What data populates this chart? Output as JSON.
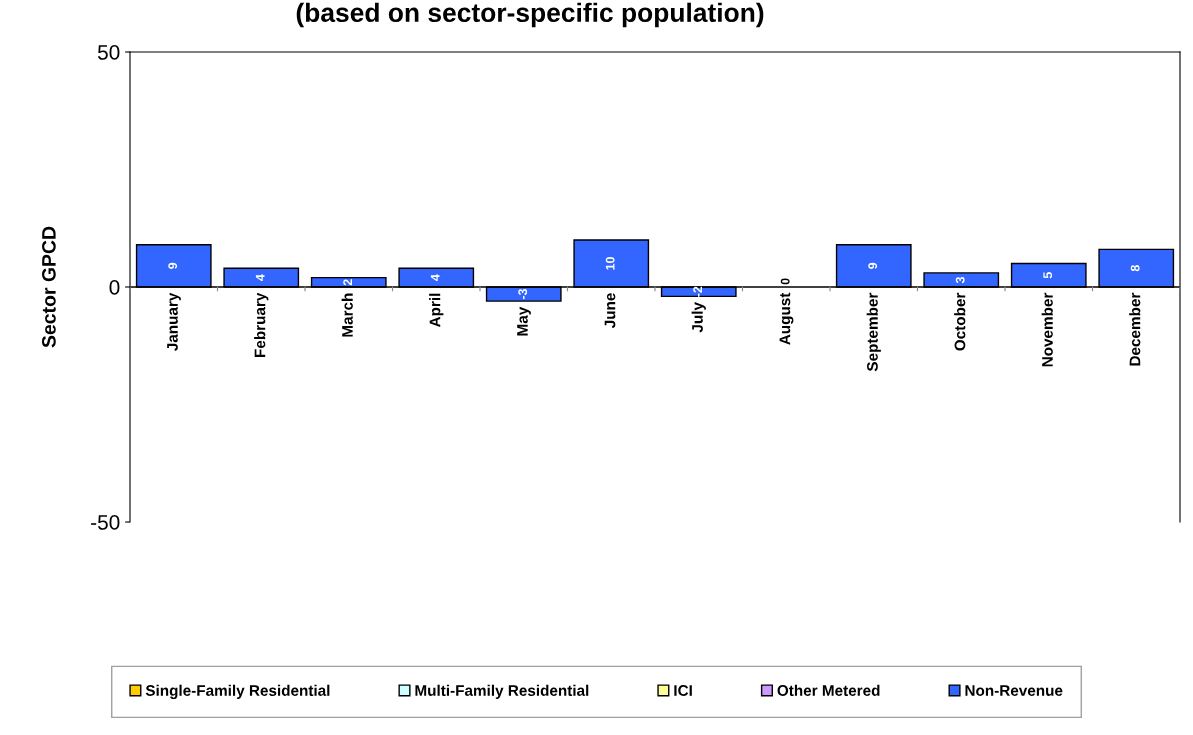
{
  "chart_data": {
    "type": "bar",
    "title": "(based on sector-specific population)",
    "ylabel": "Sector GPCD",
    "categories": [
      "January",
      "February",
      "March",
      "April",
      "May",
      "June",
      "July",
      "August",
      "September",
      "October",
      "November",
      "December"
    ],
    "series": [
      {
        "name": "Single-Family Residential",
        "color": "#ffcc00",
        "values": [
          0,
          0,
          0,
          0,
          0,
          0,
          0,
          0,
          0,
          0,
          0,
          0
        ]
      },
      {
        "name": "Multi-Family Residential",
        "color": "#ccffff",
        "values": [
          0,
          0,
          0,
          0,
          0,
          0,
          0,
          0,
          0,
          0,
          0,
          0
        ]
      },
      {
        "name": "ICI",
        "color": "#ffff99",
        "values": [
          0,
          0,
          0,
          0,
          0,
          0,
          0,
          0,
          0,
          0,
          0,
          0
        ]
      },
      {
        "name": "Other Metered",
        "color": "#cc99ff",
        "values": [
          0,
          0,
          0,
          0,
          0,
          0,
          0,
          0,
          0,
          0,
          0,
          0
        ]
      },
      {
        "name": "Non-Revenue",
        "color": "#3366ff",
        "values": [
          9,
          4,
          2,
          4,
          -3,
          10,
          -2,
          0,
          9,
          3,
          5,
          8
        ],
        "value_labels": [
          "9",
          "4",
          "2",
          "4",
          "-3",
          "10",
          "-2",
          "0",
          "9",
          "3",
          "5",
          "8"
        ]
      }
    ],
    "stacked": true,
    "ylim": [
      -50,
      50
    ],
    "yticks": [
      -50,
      0,
      50
    ],
    "grid": false,
    "legend": "bottom"
  }
}
